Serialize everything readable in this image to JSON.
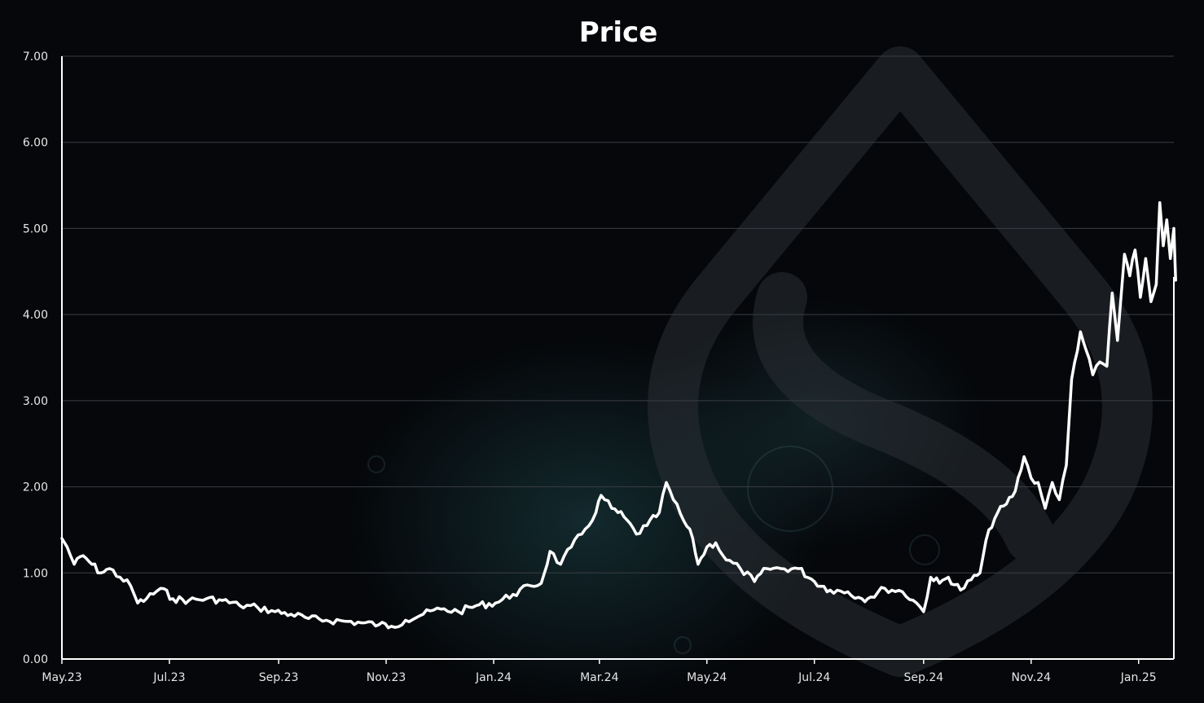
{
  "chart_data": {
    "type": "line",
    "title": "Price",
    "xlabel": "",
    "ylabel": "",
    "ylim": [
      0,
      7
    ],
    "y_ticks": [
      "0.00",
      "1.00",
      "2.00",
      "3.00",
      "4.00",
      "5.00",
      "6.00",
      "7.00"
    ],
    "x_ticks": [
      "May.23",
      "Jul.23",
      "Sep.23",
      "Nov.23",
      "Jan.24",
      "Mar.24",
      "May.24",
      "Jul.24",
      "Sep.24",
      "Nov.24",
      "Jan.25"
    ],
    "x_range": [
      "2023-05-01",
      "2025-01-21"
    ],
    "grid": true,
    "legend": "none",
    "colors": {
      "line": "#ffffff",
      "background": "#05070a",
      "grid": "#3a3e44",
      "watermark": "#2a2f34"
    },
    "watermark_icon": "water-drop-logo-icon",
    "series": [
      {
        "points": [
          [
            "2023-05-01",
            1.4
          ],
          [
            "2023-05-04",
            1.3
          ],
          [
            "2023-05-08",
            1.1
          ],
          [
            "2023-05-13",
            1.2
          ],
          [
            "2023-05-18",
            1.1
          ],
          [
            "2023-05-23",
            1.0
          ],
          [
            "2023-05-28",
            1.05
          ],
          [
            "2023-06-03",
            0.95
          ],
          [
            "2023-06-09",
            0.85
          ],
          [
            "2023-06-13",
            0.65
          ],
          [
            "2023-06-18",
            0.7
          ],
          [
            "2023-06-26",
            0.82
          ],
          [
            "2023-07-03",
            0.7
          ],
          [
            "2023-07-12",
            0.68
          ],
          [
            "2023-07-22",
            0.7
          ],
          [
            "2023-07-31",
            0.68
          ],
          [
            "2023-08-10",
            0.62
          ],
          [
            "2023-08-20",
            0.6
          ],
          [
            "2023-08-30",
            0.55
          ],
          [
            "2023-09-08",
            0.52
          ],
          [
            "2023-09-18",
            0.47
          ],
          [
            "2023-09-28",
            0.45
          ],
          [
            "2023-10-08",
            0.44
          ],
          [
            "2023-10-18",
            0.42
          ],
          [
            "2023-10-28",
            0.4
          ],
          [
            "2023-11-04",
            0.38
          ],
          [
            "2023-11-12",
            0.45
          ],
          [
            "2023-11-22",
            0.52
          ],
          [
            "2023-12-02",
            0.58
          ],
          [
            "2023-12-12",
            0.55
          ],
          [
            "2023-12-22",
            0.62
          ],
          [
            "2024-01-02",
            0.65
          ],
          [
            "2024-01-12",
            0.75
          ],
          [
            "2024-01-22",
            0.85
          ],
          [
            "2024-01-28",
            0.88
          ],
          [
            "2024-02-02",
            1.25
          ],
          [
            "2024-02-08",
            1.1
          ],
          [
            "2024-02-14",
            1.3
          ],
          [
            "2024-02-20",
            1.45
          ],
          [
            "2024-02-28",
            1.7
          ],
          [
            "2024-03-02",
            1.9
          ],
          [
            "2024-03-08",
            1.75
          ],
          [
            "2024-03-15",
            1.65
          ],
          [
            "2024-03-22",
            1.45
          ],
          [
            "2024-03-28",
            1.55
          ],
          [
            "2024-04-04",
            1.7
          ],
          [
            "2024-04-08",
            2.05
          ],
          [
            "2024-04-12",
            1.85
          ],
          [
            "2024-04-18",
            1.6
          ],
          [
            "2024-04-23",
            1.4
          ],
          [
            "2024-04-26",
            1.1
          ],
          [
            "2024-05-01",
            1.3
          ],
          [
            "2024-05-06",
            1.35
          ],
          [
            "2024-05-12",
            1.15
          ],
          [
            "2024-05-20",
            1.05
          ],
          [
            "2024-05-28",
            0.9
          ],
          [
            "2024-06-04",
            1.05
          ],
          [
            "2024-06-12",
            1.05
          ],
          [
            "2024-06-22",
            1.05
          ],
          [
            "2024-07-01",
            0.9
          ],
          [
            "2024-07-10",
            0.8
          ],
          [
            "2024-07-20",
            0.78
          ],
          [
            "2024-07-28",
            0.7
          ],
          [
            "2024-08-02",
            0.72
          ],
          [
            "2024-08-10",
            0.82
          ],
          [
            "2024-08-20",
            0.78
          ],
          [
            "2024-08-28",
            0.65
          ],
          [
            "2024-09-01",
            0.55
          ],
          [
            "2024-09-05",
            0.95
          ],
          [
            "2024-09-10",
            0.88
          ],
          [
            "2024-09-15",
            0.95
          ],
          [
            "2024-09-22",
            0.8
          ],
          [
            "2024-09-28",
            0.92
          ],
          [
            "2024-10-03",
            1.0
          ],
          [
            "2024-10-08",
            1.5
          ],
          [
            "2024-10-13",
            1.7
          ],
          [
            "2024-10-18",
            1.8
          ],
          [
            "2024-10-23",
            1.95
          ],
          [
            "2024-10-28",
            2.35
          ],
          [
            "2024-11-01",
            2.1
          ],
          [
            "2024-11-05",
            2.05
          ],
          [
            "2024-11-09",
            1.75
          ],
          [
            "2024-11-13",
            2.05
          ],
          [
            "2024-11-17",
            1.85
          ],
          [
            "2024-11-21",
            2.25
          ],
          [
            "2024-11-24",
            3.25
          ],
          [
            "2024-11-29",
            3.8
          ],
          [
            "2024-12-02",
            3.6
          ],
          [
            "2024-12-06",
            3.3
          ],
          [
            "2024-12-10",
            3.45
          ],
          [
            "2024-12-14",
            3.4
          ],
          [
            "2024-12-17",
            4.25
          ],
          [
            "2024-12-20",
            3.7
          ],
          [
            "2024-12-24",
            4.7
          ],
          [
            "2024-12-27",
            4.45
          ],
          [
            "2024-12-30",
            4.75
          ],
          [
            "2025-01-02",
            4.2
          ],
          [
            "2025-01-05",
            4.65
          ],
          [
            "2025-01-08",
            4.15
          ],
          [
            "2025-01-11",
            4.35
          ],
          [
            "2025-01-13",
            5.3
          ],
          [
            "2025-01-15",
            4.8
          ],
          [
            "2025-01-17",
            5.1
          ],
          [
            "2025-01-19",
            4.65
          ],
          [
            "2025-01-21",
            5.0
          ],
          [
            "2025-01-22",
            4.4
          ]
        ]
      }
    ]
  }
}
